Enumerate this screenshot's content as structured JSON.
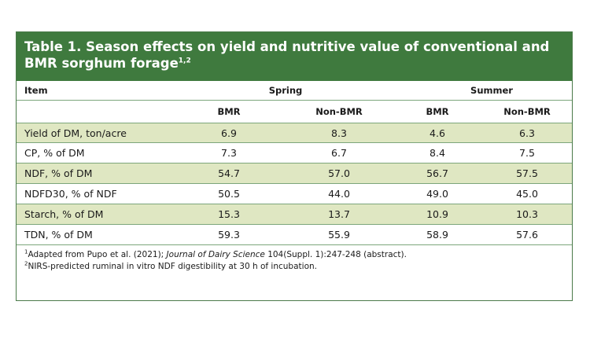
{
  "table": {
    "title_main": "Table 1. Season effects on yield and nutritive value of conventional and BMR sorghum forage",
    "title_sup": "1,2",
    "item_header": "Item",
    "groups": [
      "Spring",
      "Summer"
    ],
    "subheaders": [
      "BMR",
      "Non-BMR",
      "BMR",
      "Non-BMR"
    ],
    "rows": [
      {
        "label": "Yield of DM, ton/acre",
        "values": [
          "6.9",
          "8.3",
          "4.6",
          "6.3"
        ]
      },
      {
        "label": "CP, % of DM",
        "values": [
          "7.3",
          "6.7",
          "8.4",
          "7.5"
        ]
      },
      {
        "label": "NDF, % of DM",
        "values": [
          "54.7",
          "57.0",
          "56.7",
          "57.5"
        ]
      },
      {
        "label": "NDFD30, % of NDF",
        "values": [
          "50.5",
          "44.0",
          "49.0",
          "45.0"
        ]
      },
      {
        "label": "Starch, % of DM",
        "values": [
          "15.3",
          "13.7",
          "10.9",
          "10.3"
        ]
      },
      {
        "label": "TDN, % of DM",
        "values": [
          "59.3",
          "55.9",
          "58.9",
          "57.6"
        ]
      }
    ],
    "footnotes": [
      {
        "mark": "1",
        "text_before": "Adapted from Pupo et al. (2021); ",
        "journal": "Journal of Dairy Science",
        "text_after": " 104(Suppl. 1):247-248 (abstract)."
      },
      {
        "mark": "2",
        "text_before": "NIRS-predicted ruminal in vitro NDF digestibility at 30 h of incubation.",
        "journal": "",
        "text_after": ""
      }
    ]
  },
  "colors": {
    "title_bg": "#3f7a3e",
    "row_shade": "#dfe7c2",
    "rule": "#7ca67b"
  }
}
